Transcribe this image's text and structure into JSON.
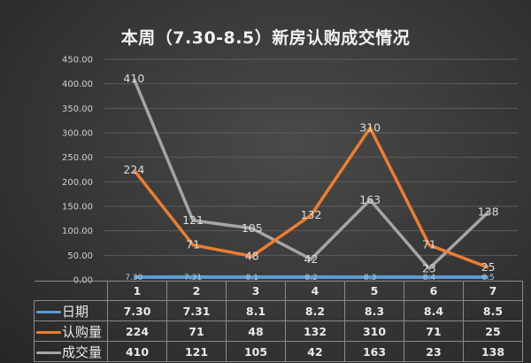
{
  "chart_data": {
    "type": "line",
    "title": "本周（7.30-8.5）新房认购成交情况",
    "xlabel": "",
    "ylabel": "",
    "categories": [
      "1",
      "2",
      "3",
      "4",
      "5",
      "6",
      "7"
    ],
    "ylim": [
      0,
      450
    ],
    "yticks": [
      "0.00",
      "50.00",
      "100.00",
      "150.00",
      "200.00",
      "250.00",
      "300.00",
      "350.00",
      "400.00",
      "450.00"
    ],
    "grid": true,
    "legend_position": "data-table",
    "series": [
      {
        "name": "日期",
        "color": "#5b9bd5",
        "values": [
          7.3,
          7.31,
          8.1,
          8.2,
          8.3,
          8.4,
          8.5
        ],
        "labels": [
          "7.30",
          "7.31",
          "8.1",
          "8.2",
          "8.3",
          "8.4",
          "8.5"
        ]
      },
      {
        "name": "认购量",
        "color": "#ed7d31",
        "values": [
          224,
          71,
          48,
          132,
          310,
          71,
          25
        ],
        "labels": [
          "224",
          "71",
          "48",
          "132",
          "310",
          "71",
          "25"
        ]
      },
      {
        "name": "成交量",
        "color": "#a5a5a5",
        "values": [
          410,
          121,
          105,
          42,
          163,
          23,
          138
        ],
        "labels": [
          "410",
          "121",
          "105",
          "42",
          "163",
          "23",
          "138"
        ]
      }
    ]
  },
  "table": {
    "header": [
      "1",
      "2",
      "3",
      "4",
      "5",
      "6",
      "7"
    ],
    "rows": [
      {
        "label": "日期",
        "cells": [
          "7.30",
          "7.31",
          "8.1",
          "8.2",
          "8.3",
          "8.4",
          "8.5"
        ]
      },
      {
        "label": "认购量",
        "cells": [
          "224",
          "71",
          "48",
          "132",
          "310",
          "71",
          "25"
        ]
      },
      {
        "label": "成交量",
        "cells": [
          "410",
          "121",
          "105",
          "42",
          "163",
          "23",
          "138"
        ]
      }
    ]
  }
}
